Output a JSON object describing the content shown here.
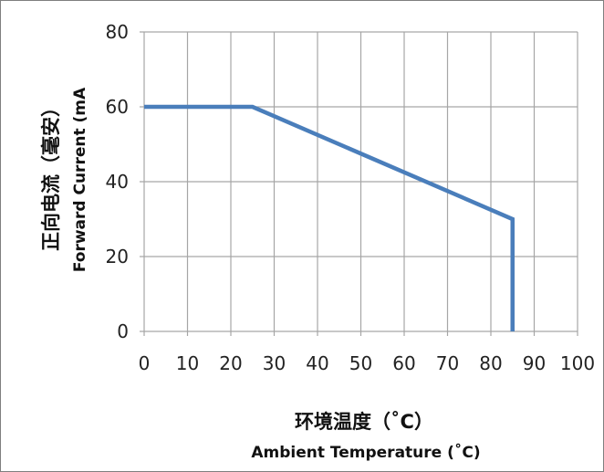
{
  "chart_data": {
    "type": "line",
    "x": [
      0,
      25,
      85,
      85
    ],
    "series": [
      {
        "values": [
          60,
          60,
          30,
          0
        ]
      }
    ],
    "xlim": [
      0,
      100
    ],
    "ylim": [
      0,
      80
    ],
    "x_ticks": [
      0,
      10,
      20,
      30,
      40,
      50,
      60,
      70,
      80,
      90,
      100
    ],
    "y_ticks": [
      0,
      20,
      40,
      60,
      80
    ],
    "xlabel_cn": "环境温度（˚C）",
    "xlabel_en": "Ambient Temperature (˚C)",
    "ylabel_cn": "正向电流（毫安）",
    "ylabel_en": "Forward Current (mA",
    "grid": true,
    "line_color": "#4a7ebb",
    "grid_color": "#a6a6a6"
  }
}
